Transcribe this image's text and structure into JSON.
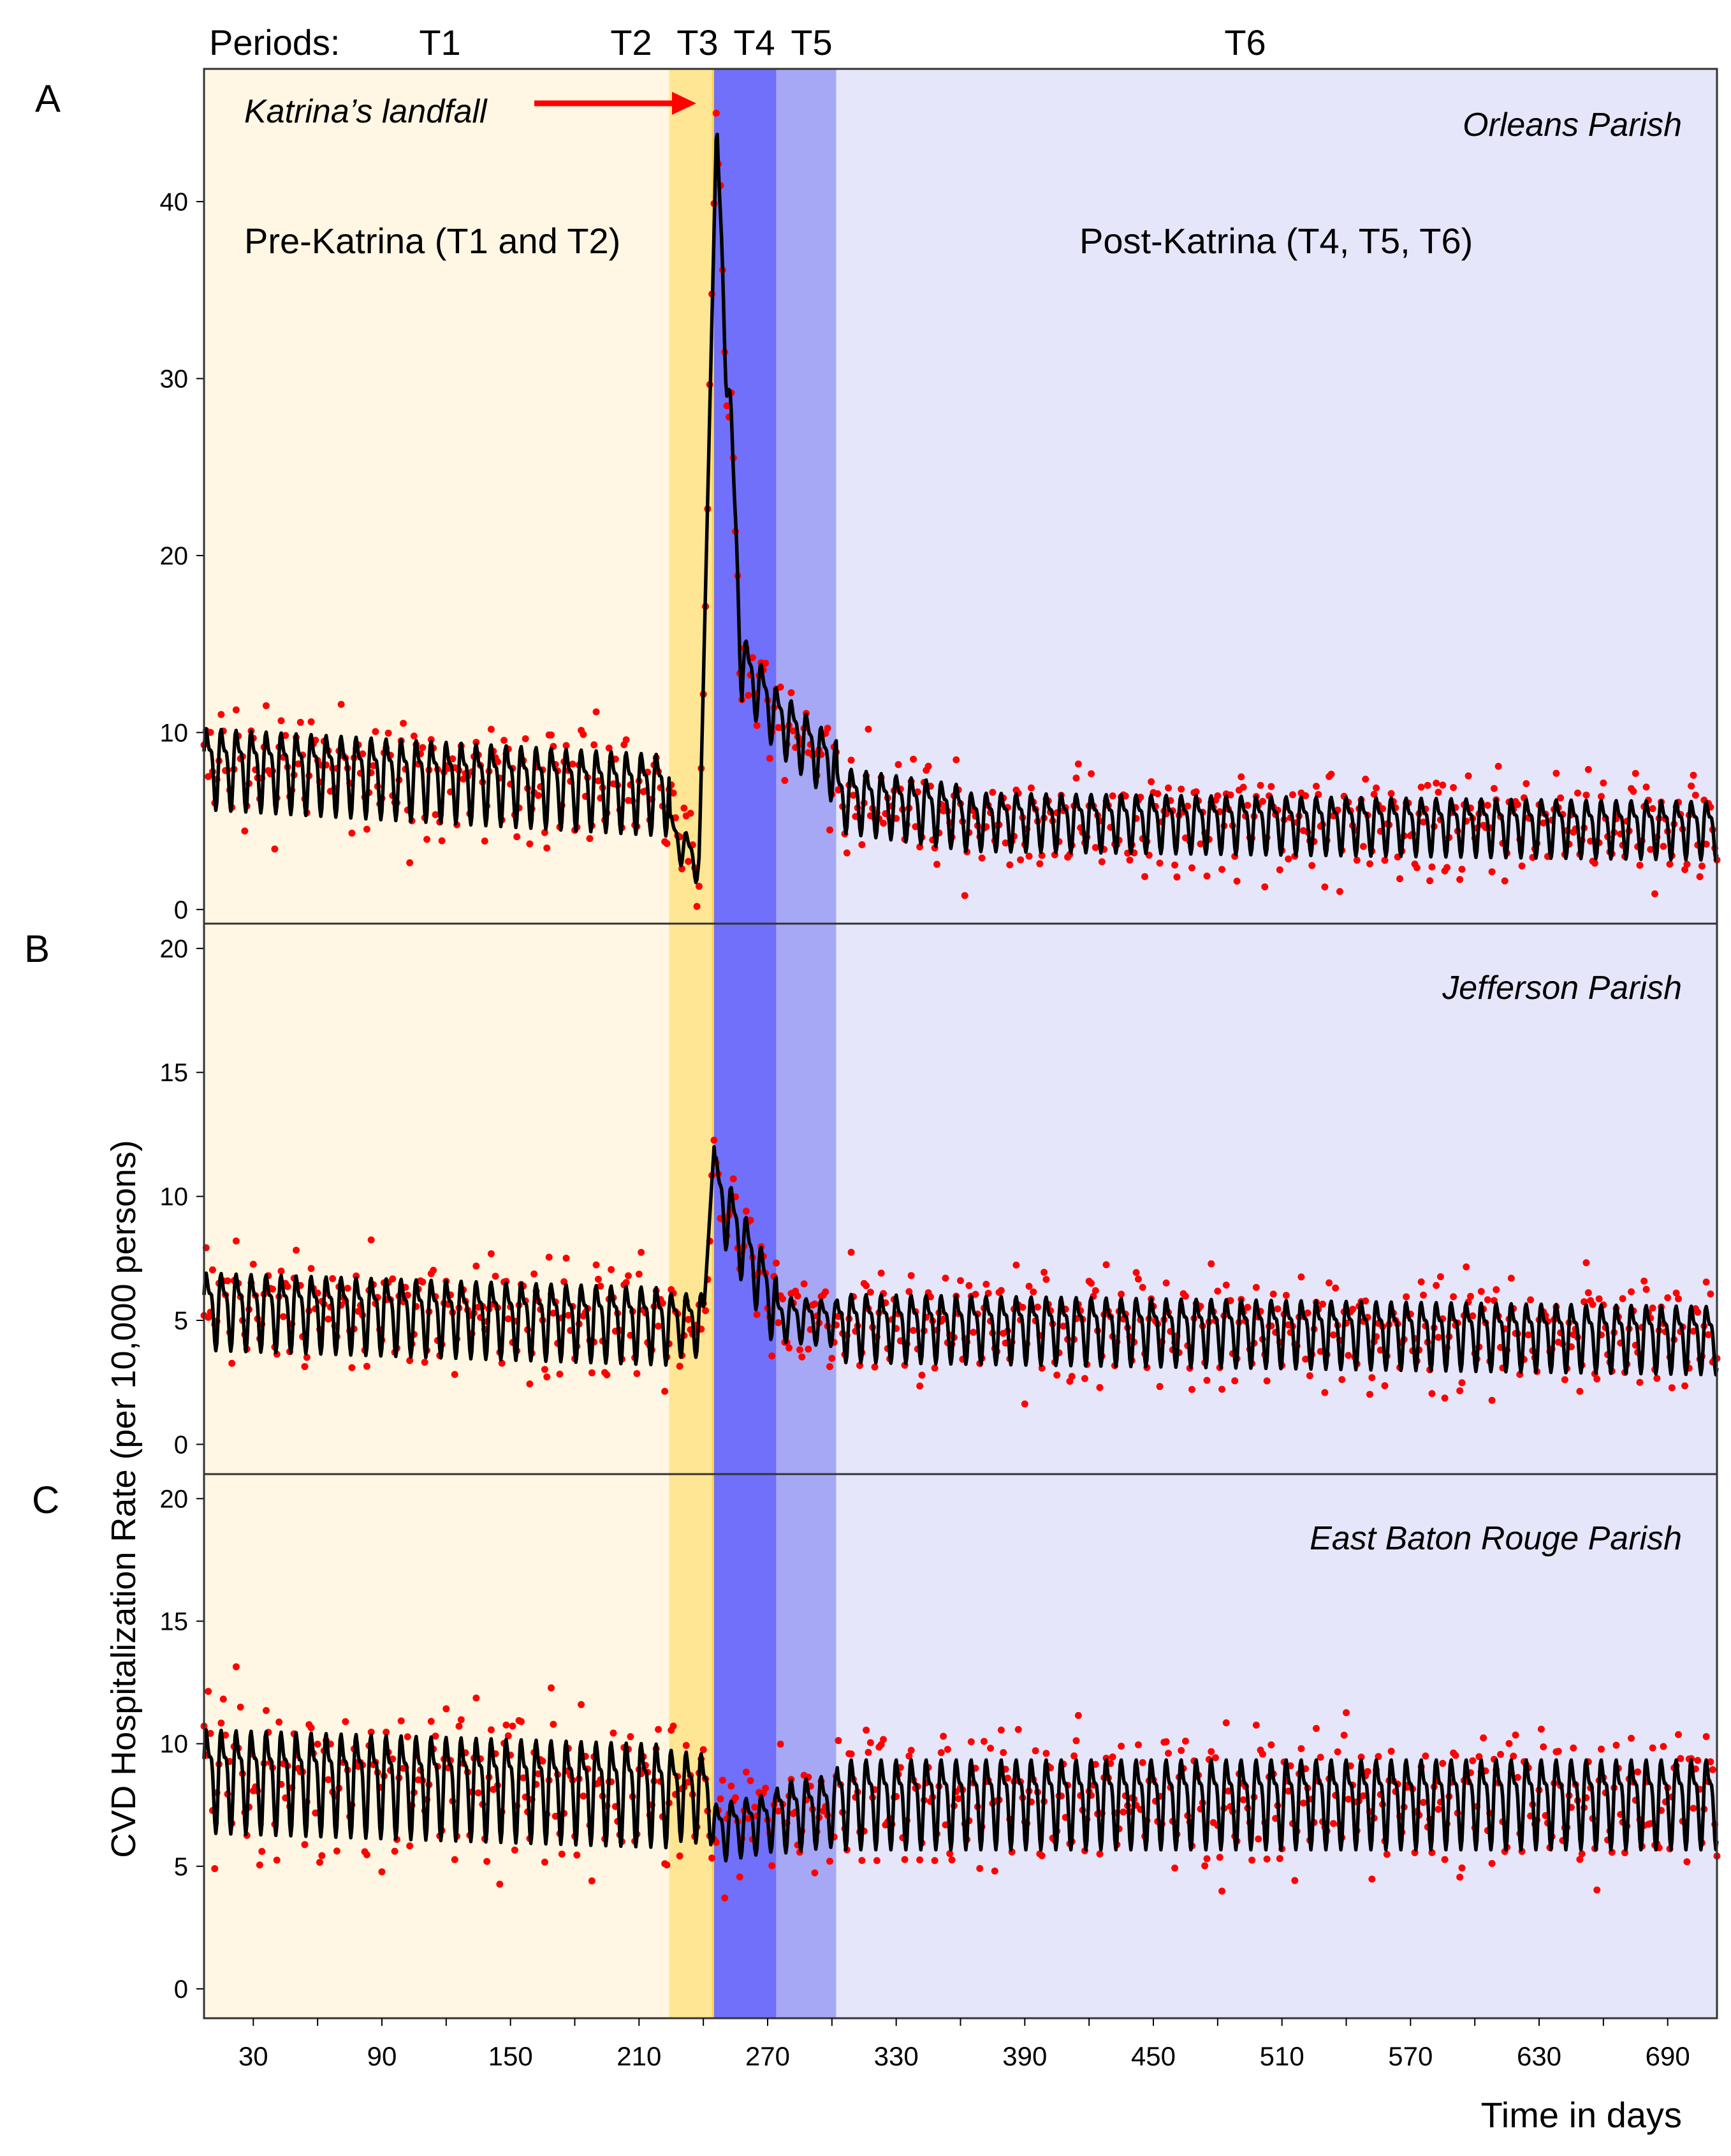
{
  "figure": {
    "periods_label": "Periods:",
    "period_names": [
      "T1",
      "T2",
      "T3",
      "T4",
      "T5",
      "T6"
    ],
    "landfall_label": "Katrina’s landfall",
    "pre_label": "Pre-Katrina (T1 and T2)",
    "post_label": "Post-Katrina (T4, T5, T6)",
    "ylabel": "CVD Hospitalization Rate (per 10,000 persons)",
    "xlabel": "Time in days",
    "x_ticks": [
      30,
      90,
      150,
      210,
      270,
      330,
      390,
      450,
      510,
      570,
      630,
      690
    ],
    "x_range": [
      7,
      713
    ]
  },
  "colors": {
    "T1": "#fff7e3",
    "T2": "#ffe694",
    "T3": "#ffd24f",
    "T4": "#7070fa",
    "T5": "#a6a8f5",
    "T6": "#e5e6fa",
    "points": "#ff0000",
    "line": "#000000",
    "arrow": "#ff0000"
  },
  "chart_data": [
    {
      "panel_letter": "A",
      "type": "line",
      "title": "Orleans Parish",
      "ylim": [
        -0.8,
        47.5
      ],
      "y_ticks": [
        0,
        10,
        20,
        30,
        40
      ],
      "periods": [
        {
          "name": "T1",
          "start": 7,
          "end": 224
        },
        {
          "name": "T2",
          "start": 224,
          "end": 244
        },
        {
          "name": "T3",
          "start": 244,
          "end": 245
        },
        {
          "name": "T4",
          "start": 245,
          "end": 274
        },
        {
          "name": "T5",
          "start": 274,
          "end": 302
        },
        {
          "name": "T6",
          "start": 302,
          "end": 713
        }
      ],
      "series": [
        {
          "name": "fitted",
          "kind": "line",
          "segments": [
            {
              "start": 7,
              "end": 224,
              "base": 8.3,
              "base_end": 6.8,
              "amp": 2.5
            },
            {
              "start": 224,
              "end": 238,
              "base": 4.5,
              "base_end": 2.6,
              "amp": 1.2
            },
            {
              "start": 238,
              "end": 246,
              "base": 2.6,
              "base_end": 43.5,
              "amp": 0
            },
            {
              "start": 246,
              "end": 258,
              "base": 43.5,
              "base_end": 14.0,
              "amp": 2.5
            },
            {
              "start": 258,
              "end": 274,
              "base": 14.0,
              "base_end": 11.0,
              "amp": 2.0
            },
            {
              "start": 274,
              "end": 302,
              "base": 11.0,
              "base_end": 8.0,
              "amp": 2.0
            },
            {
              "start": 302,
              "end": 360,
              "base": 6.5,
              "base_end": 5.5,
              "amp": 2.0
            },
            {
              "start": 360,
              "end": 713,
              "base": 5.2,
              "base_end": 4.7,
              "amp": 1.8
            }
          ]
        },
        {
          "name": "observed",
          "kind": "scatter",
          "noise": 2.4
        }
      ]
    },
    {
      "panel_letter": "B",
      "type": "line",
      "title": "Jefferson Parish",
      "ylim": [
        -1.2,
        21.0
      ],
      "y_ticks": [
        0,
        5,
        10,
        15,
        20
      ],
      "periods": [
        {
          "name": "T1",
          "start": 7,
          "end": 224
        },
        {
          "name": "T2",
          "start": 224,
          "end": 244
        },
        {
          "name": "T3",
          "start": 244,
          "end": 245
        },
        {
          "name": "T4",
          "start": 245,
          "end": 274
        },
        {
          "name": "T5",
          "start": 274,
          "end": 302
        },
        {
          "name": "T6",
          "start": 302,
          "end": 713
        }
      ],
      "series": [
        {
          "name": "fitted",
          "kind": "line",
          "segments": [
            {
              "start": 7,
              "end": 224,
              "base": 5.6,
              "base_end": 5.0,
              "amp": 1.7
            },
            {
              "start": 224,
              "end": 240,
              "base": 5.0,
              "base_end": 5.0,
              "amp": 1.4
            },
            {
              "start": 240,
              "end": 245,
              "base": 5.0,
              "base_end": 12.0,
              "amp": 0
            },
            {
              "start": 245,
              "end": 274,
              "base": 10.5,
              "base_end": 5.5,
              "amp": 1.6
            },
            {
              "start": 274,
              "end": 302,
              "base": 5.2,
              "base_end": 5.0,
              "amp": 1.0
            },
            {
              "start": 302,
              "end": 713,
              "base": 4.9,
              "base_end": 4.4,
              "amp": 1.5
            }
          ]
        },
        {
          "name": "observed",
          "kind": "scatter",
          "noise": 1.6
        }
      ]
    },
    {
      "panel_letter": "C",
      "type": "line",
      "title": "East Baton Rouge Parish",
      "ylim": [
        -1.2,
        21.0
      ],
      "y_ticks": [
        0,
        5,
        10,
        15,
        20
      ],
      "periods": [
        {
          "name": "T1",
          "start": 7,
          "end": 224
        },
        {
          "name": "T2",
          "start": 224,
          "end": 244
        },
        {
          "name": "T3",
          "start": 244,
          "end": 245
        },
        {
          "name": "T4",
          "start": 245,
          "end": 274
        },
        {
          "name": "T5",
          "start": 274,
          "end": 302
        },
        {
          "name": "T6",
          "start": 302,
          "end": 713
        }
      ],
      "series": [
        {
          "name": "fitted",
          "kind": "line",
          "segments": [
            {
              "start": 7,
              "end": 224,
              "base": 8.8,
              "base_end": 8.2,
              "amp": 2.3
            },
            {
              "start": 224,
              "end": 244,
              "base": 8.2,
              "base_end": 8.0,
              "amp": 2.0
            },
            {
              "start": 244,
              "end": 274,
              "base": 6.5,
              "base_end": 7.0,
              "amp": 1.3
            },
            {
              "start": 274,
              "end": 302,
              "base": 7.2,
              "base_end": 7.5,
              "amp": 1.6
            },
            {
              "start": 302,
              "end": 713,
              "base": 7.8,
              "base_end": 7.8,
              "amp": 2.0
            }
          ]
        },
        {
          "name": "observed",
          "kind": "scatter",
          "noise": 2.2
        }
      ]
    }
  ]
}
